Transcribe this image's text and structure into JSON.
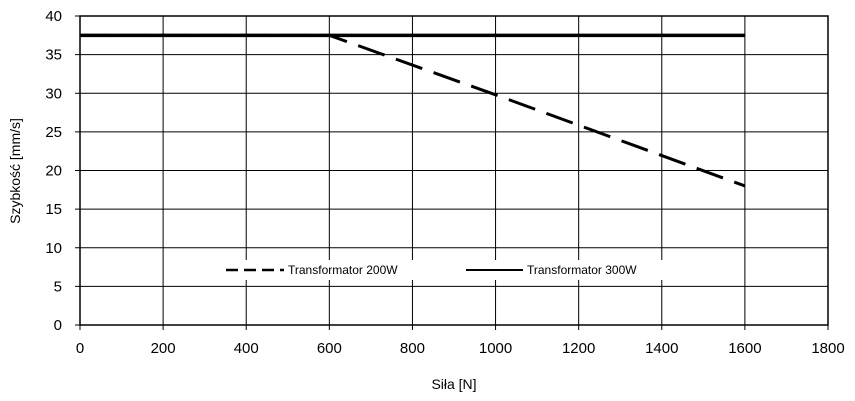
{
  "chart_data": {
    "type": "line",
    "title": "",
    "xlabel": "Siła [N]",
    "ylabel": "Szybkość [mm/s]",
    "xlim": [
      0,
      1800
    ],
    "ylim": [
      0,
      40
    ],
    "x_ticks": [
      "0",
      "200",
      "400",
      "600",
      "800",
      "1000",
      "1200",
      "1400",
      "1600",
      "1800"
    ],
    "y_ticks": [
      "0",
      "5",
      "10",
      "15",
      "20",
      "25",
      "30",
      "35",
      "40"
    ],
    "grid": true,
    "legend_position": "bottom-center",
    "series": [
      {
        "name": "Transformator 200W",
        "style": "dashed",
        "color": "#000000",
        "x": [
          0,
          600,
          1000,
          1600
        ],
        "y": [
          37.5,
          37.5,
          29.8,
          18.0
        ]
      },
      {
        "name": "Transformator 300W",
        "style": "solid",
        "color": "#000000",
        "x": [
          0,
          1600
        ],
        "y": [
          37.5,
          37.5
        ]
      }
    ]
  }
}
